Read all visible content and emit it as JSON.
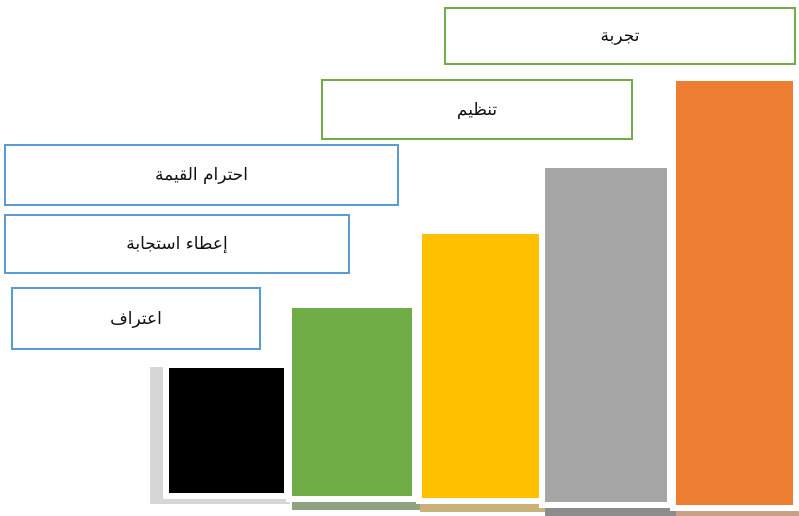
{
  "labels": {
    "experience": "تجربة",
    "organization": "تنظيم",
    "valuing": "احترام القيمة",
    "responding": "إعطاء استجابة",
    "receiving": "اعتراف"
  },
  "colors": {
    "step_black": "#000000",
    "step_green": "#70AD47",
    "step_yellow": "#FFC000",
    "step_gray": "#A5A5A5",
    "step_orange": "#ED7D31",
    "border_green": "#70AD47",
    "border_blue": "#5B9BD5",
    "shadow_light": "#D6D6D6",
    "shadow_green": "#8FA383",
    "shadow_yellow": "#C9B27A",
    "shadow_gray": "#8C8C8C",
    "shadow_orange": "#C9A086"
  }
}
